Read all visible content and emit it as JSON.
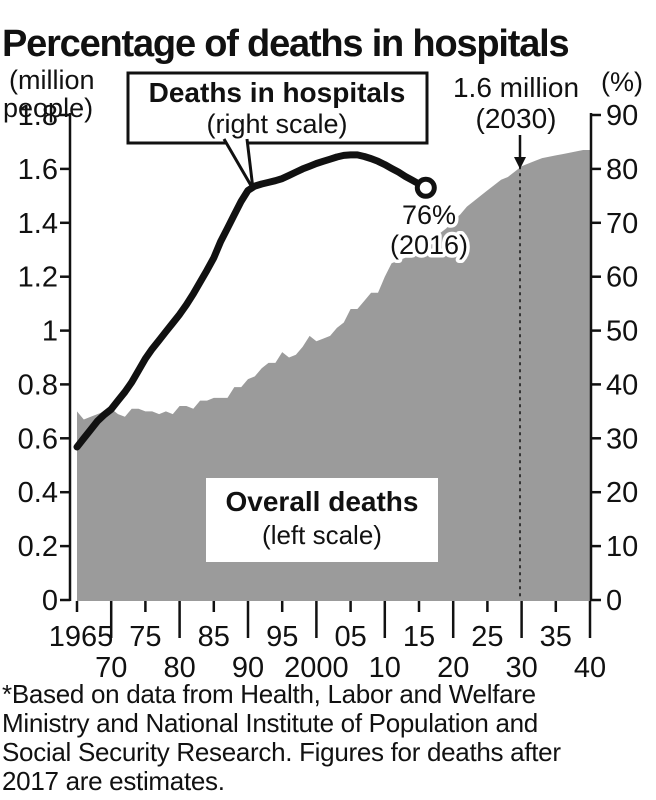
{
  "title": "Percentage of deaths in hospitals",
  "axes": {
    "left_unit_line1": "(million",
    "left_unit_line2": "people)",
    "right_unit": "(%)",
    "left_ticks": [
      "1.8",
      "1.6",
      "1.4",
      "1.2",
      "1",
      "0.8",
      "0.6",
      "0.4",
      "0.2",
      "0"
    ],
    "right_ticks": [
      "90",
      "80",
      "70",
      "60",
      "50",
      "40",
      "30",
      "20",
      "10",
      "0"
    ],
    "x_upper_ticks": [
      {
        "year": 1965,
        "label": "1965"
      },
      {
        "year": 1975,
        "label": "75"
      },
      {
        "year": 1985,
        "label": "85"
      },
      {
        "year": 1995,
        "label": "95"
      },
      {
        "year": 2005,
        "label": "05"
      },
      {
        "year": 2015,
        "label": "15"
      },
      {
        "year": 2025,
        "label": "25"
      },
      {
        "year": 2035,
        "label": "35"
      }
    ],
    "x_lower_ticks": [
      {
        "year": 1970,
        "label": "70"
      },
      {
        "year": 1980,
        "label": "80"
      },
      {
        "year": 1990,
        "label": "90"
      },
      {
        "year": 2000,
        "label": "2000"
      },
      {
        "year": 2010,
        "label": "10"
      },
      {
        "year": 2020,
        "label": "20"
      },
      {
        "year": 2030,
        "label": "30"
      },
      {
        "year": 2040,
        "label": "40"
      }
    ]
  },
  "labels": {
    "hospital_line1": "Deaths in hospitals",
    "hospital_line2": "(right scale)",
    "overall_line1": "Overall deaths",
    "overall_line2": "(left scale)",
    "peak_value": "1.6 million",
    "peak_year": "(2030)",
    "end_value": "76%",
    "end_year": "(2016)"
  },
  "footnote": "*Based on data from Health, Labor and Welfare\nMinistry and National Institute of Population and\nSocial Security Research. Figures for deaths after\n2017 are estimates.",
  "colors": {
    "area": "#9b9b9b",
    "line": "#111111",
    "background": "#ffffff"
  },
  "chart_data": {
    "type": "area+line",
    "title": "Percentage of deaths in hospitals",
    "xlim": [
      1965,
      2040
    ],
    "left_axis": {
      "label": "(million people)",
      "range": [
        0,
        1.8
      ]
    },
    "right_axis": {
      "label": "(%)",
      "range": [
        0,
        90
      ]
    },
    "series": [
      {
        "name": "Overall deaths",
        "type": "area",
        "axis": "left",
        "unit": "million people",
        "start_year": 1965,
        "values": [
          0.7,
          0.67,
          0.68,
          0.69,
          0.7,
          0.71,
          0.69,
          0.68,
          0.71,
          0.71,
          0.7,
          0.7,
          0.69,
          0.7,
          0.69,
          0.72,
          0.72,
          0.71,
          0.74,
          0.74,
          0.75,
          0.75,
          0.75,
          0.79,
          0.79,
          0.82,
          0.83,
          0.86,
          0.88,
          0.88,
          0.92,
          0.9,
          0.91,
          0.94,
          0.98,
          0.96,
          0.97,
          0.98,
          1.01,
          1.03,
          1.08,
          1.08,
          1.11,
          1.14,
          1.14,
          1.2,
          1.25,
          1.26,
          1.27,
          1.27,
          1.29,
          1.31,
          1.34,
          1.36,
          1.38,
          1.41,
          1.43,
          1.46,
          1.48,
          1.5,
          1.52,
          1.54,
          1.56,
          1.57,
          1.59,
          1.61,
          1.62,
          1.63,
          1.64,
          1.645,
          1.65,
          1.655,
          1.66,
          1.665,
          1.67,
          1.67
        ]
      },
      {
        "name": "Deaths in hospitals",
        "type": "line",
        "axis": "right",
        "unit": "%",
        "start_year": 1965,
        "values": [
          28.4,
          30.0,
          31.6,
          33.2,
          34.4,
          35.4,
          37.0,
          38.6,
          40.4,
          42.6,
          44.8,
          46.6,
          48.2,
          49.8,
          51.4,
          53.0,
          54.8,
          56.8,
          59.0,
          61.2,
          63.5,
          66.5,
          69.0,
          71.5,
          74.0,
          76.0,
          76.8,
          77.2,
          77.5,
          77.8,
          78.2,
          78.8,
          79.4,
          80.0,
          80.5,
          81.0,
          81.4,
          81.8,
          82.2,
          82.5,
          82.6,
          82.6,
          82.3,
          81.9,
          81.4,
          80.8,
          80.1,
          79.4,
          78.6,
          77.9,
          77.2,
          76.5
        ]
      }
    ],
    "annotations": [
      {
        "text": "1.6 million (2030)",
        "year": 2030,
        "value": 1.61,
        "axis": "left"
      },
      {
        "text": "76% (2016)",
        "year": 2016,
        "value": 76,
        "axis": "right"
      }
    ],
    "notes": "Figures for deaths after 2017 are estimates."
  }
}
